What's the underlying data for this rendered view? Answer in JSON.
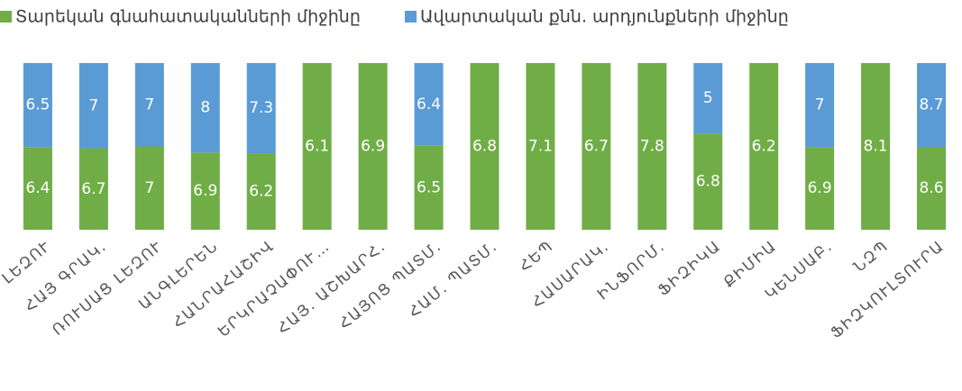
{
  "chart_data": {
    "type": "bar",
    "stacking": "percent",
    "categories": [
      "ՀԱՅՈՑ ԼԵԶՈՒ",
      "ՀԱՅ ԳՐԱԿ.",
      "ՌՈՒՍԱՑ ԼԵԶՈՒ",
      "ԱՆԳԼԵՐԵՆ",
      "ՀԱՆՐԱՀԱՇԻՎ",
      "ԵՐԿՐԱՉԱՓՈՒ…",
      "ՀԱՅ. ԱՇԽԱՐՀ.",
      "ՀԱՅՈՑ ՊԱՏՄ.",
      "ՀԱՄ. ՊԱՏՄ.",
      "ՀԵՊ",
      "ՀԱՍԱՐԱԿ.",
      "ԻՆՖՈՐՄ.",
      "ՖԻԶԻԿԱ",
      "ՔԻՄԻԱ",
      "ԿԵՆՍԱԲ.",
      "ՆԶՊ",
      "ՖԻԶԿՈՒԼՏՈՒՐԱ"
    ],
    "series": [
      {
        "name": "Տարեկան գնահատականների միջինը",
        "color": "#70ad47",
        "values": [
          6.4,
          6.7,
          7,
          6.9,
          6.2,
          6.1,
          6.9,
          6.5,
          6.8,
          7.1,
          6.7,
          7.8,
          6.8,
          6.2,
          6.9,
          8.1,
          8.6
        ]
      },
      {
        "name": "Ավարտական քնն. արդյունքների միջինը",
        "color": "#5b9bd5",
        "values": [
          6.5,
          7,
          7,
          8,
          7.3,
          null,
          null,
          6.4,
          null,
          null,
          null,
          null,
          5,
          null,
          7,
          null,
          8.7
        ]
      }
    ]
  }
}
